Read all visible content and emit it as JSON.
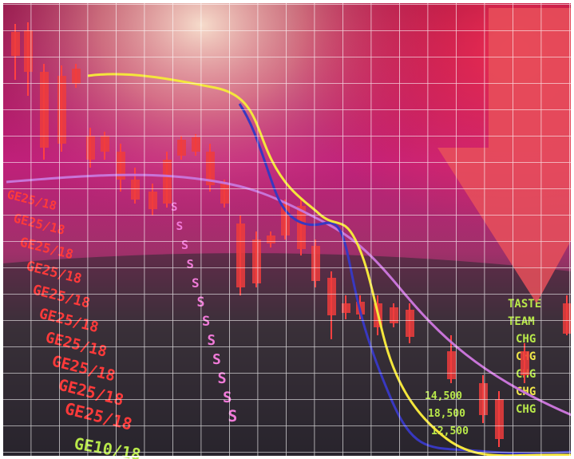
{
  "scene": {
    "description_colors": {
      "sky_top": "#7a0b3a",
      "glow": "#f2c2a8",
      "magenta": "#c0207a",
      "bottom": "#2a2428",
      "grid": "#ffffff",
      "candle_red": "#e83a3a",
      "yellow_line": "#f2e33a",
      "violet_line": "#c772d8",
      "blue_line": "#3a3ab8",
      "arrow": "#e84a4a",
      "ticker_red": "#ff3a3a",
      "ticker_green": "#b8e84a",
      "ticker_pink": "#f07ad8"
    },
    "ticker_labels_red": [
      "GE25/18",
      "GE25/18",
      "GE25/18",
      "GE25/18",
      "GE25/18",
      "GE25/18",
      "GE25/18",
      "GE25/18",
      "GE25/18",
      "GE25/18"
    ],
    "ticker_label_green_bottom": "GE10/18",
    "ticker_labels_right": [
      "TASTE",
      "TEAM",
      "CHG",
      "CHG",
      "CHG",
      "CHG",
      "CHG"
    ],
    "ticker_numbers_mid": [
      "14,500",
      "18,500",
      "12,500"
    ],
    "pink_s_column": [
      "S",
      "S",
      "S",
      "S",
      "S",
      "S",
      "S",
      "S",
      "S",
      "S",
      "S",
      "S"
    ]
  }
}
